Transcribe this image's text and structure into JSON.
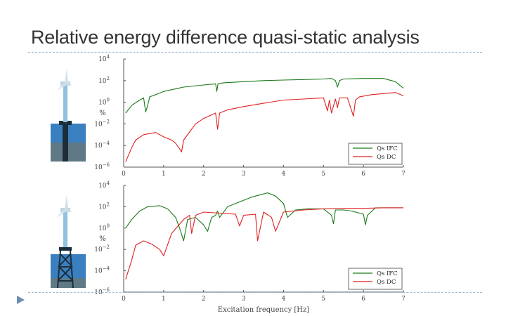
{
  "slide": {
    "title": "Relative energy difference quasi-static analysis"
  },
  "colors": {
    "ifc": "#1a7a1a",
    "dc": "#e02020",
    "axis": "#555555",
    "rule": "#a9bccd",
    "water": "#3a7fc0",
    "seabed": "#5f7a86",
    "tower": "#7fb8d8"
  },
  "icons": [
    "monopile-turbine-icon",
    "jacket-turbine-icon",
    "bullet-arrow-icon"
  ],
  "chart_data": [
    {
      "type": "line",
      "title": "",
      "xlabel": "",
      "ylabel": "%",
      "xlim": [
        0,
        7
      ],
      "ylim_log10": [
        -6,
        4
      ],
      "yscale": "log",
      "x_ticks": [
        "0",
        "1",
        "2",
        "3",
        "4",
        "5",
        "6",
        "7"
      ],
      "y_ticks": [
        {
          "base": "10",
          "exp": "4"
        },
        {
          "base": "10",
          "exp": "2"
        },
        {
          "base": "10",
          "exp": "0"
        },
        {
          "base": "10",
          "exp": "−2"
        },
        {
          "base": "10",
          "exp": "−4"
        },
        {
          "base": "10",
          "exp": "−6"
        }
      ],
      "legend_position": "bottom-right",
      "series": [
        {
          "name": "Qs IFC",
          "color": "#1a7a1a",
          "x": [
            0.05,
            0.2,
            0.4,
            0.5,
            0.55,
            0.6,
            0.65,
            0.8,
            1.0,
            1.5,
            2.0,
            2.3,
            2.33,
            2.36,
            2.5,
            3.0,
            3.5,
            4.0,
            4.5,
            5.0,
            5.2,
            5.3,
            5.35,
            5.4,
            5.5,
            6.0,
            6.5,
            6.8,
            7.0
          ],
          "log10_y": [
            -1.0,
            -0.3,
            0.2,
            0.4,
            -0.9,
            -0.3,
            0.5,
            0.7,
            1.0,
            1.4,
            1.6,
            1.7,
            1.0,
            1.7,
            1.8,
            1.9,
            2.0,
            2.05,
            2.1,
            2.15,
            2.2,
            2.0,
            1.4,
            2.0,
            2.15,
            2.2,
            2.2,
            1.9,
            1.3
          ]
        },
        {
          "name": "Qs DC",
          "color": "#e02020",
          "x": [
            0.05,
            0.2,
            0.3,
            0.5,
            0.8,
            1.0,
            1.2,
            1.3,
            1.4,
            1.45,
            1.5,
            1.8,
            2.0,
            2.3,
            2.35,
            2.4,
            2.6,
            3.0,
            3.5,
            4.0,
            4.5,
            5.0,
            5.1,
            5.15,
            5.2,
            5.3,
            5.35,
            5.4,
            5.6,
            5.75,
            5.8,
            5.9,
            6.2,
            6.5,
            6.8,
            7.0
          ],
          "log10_y": [
            -5.5,
            -4.2,
            -3.5,
            -3.0,
            -2.8,
            -3.2,
            -3.5,
            -3.8,
            -4.3,
            -4.6,
            -3.5,
            -2.0,
            -1.5,
            -1.0,
            -2.5,
            -1.0,
            -0.7,
            -0.4,
            -0.1,
            0.2,
            0.3,
            0.4,
            -0.8,
            0.2,
            -1.0,
            0.3,
            -0.5,
            0.4,
            0.4,
            -1.3,
            0.2,
            0.5,
            0.7,
            0.8,
            0.9,
            0.6
          ]
        }
      ]
    },
    {
      "type": "line",
      "title": "",
      "xlabel": "Excitation frequency [Hz]",
      "ylabel": "%",
      "xlim": [
        0,
        7
      ],
      "ylim_log10": [
        -6,
        4
      ],
      "yscale": "log",
      "x_ticks": [
        "0",
        "1",
        "2",
        "3",
        "4",
        "5",
        "6",
        "7"
      ],
      "y_ticks": [
        {
          "base": "10",
          "exp": "4"
        },
        {
          "base": "10",
          "exp": "2"
        },
        {
          "base": "10",
          "exp": "0"
        },
        {
          "base": "10",
          "exp": "−2"
        },
        {
          "base": "10",
          "exp": "−4"
        },
        {
          "base": "10",
          "exp": "−6"
        }
      ],
      "legend_position": "bottom-right",
      "series": [
        {
          "name": "Qs IFC",
          "color": "#1a7a1a",
          "x": [
            0.05,
            0.2,
            0.4,
            0.6,
            0.9,
            1.1,
            1.3,
            1.4,
            1.5,
            1.6,
            1.8,
            2.0,
            2.1,
            2.2,
            2.3,
            2.35,
            2.4,
            2.6,
            2.8,
            3.0,
            3.2,
            3.4,
            3.6,
            3.8,
            4.0,
            4.1,
            4.3,
            4.6,
            5.0,
            5.2,
            5.25,
            5.3,
            5.5,
            5.7,
            6.0,
            6.05,
            6.1,
            6.3,
            6.6,
            7.0
          ],
          "log10_y": [
            0.0,
            0.8,
            1.6,
            2.0,
            2.1,
            1.8,
            1.0,
            0.0,
            -1.2,
            0.8,
            1.0,
            0.3,
            -0.3,
            1.0,
            1.2,
            1.6,
            1.0,
            2.0,
            2.3,
            2.6,
            2.9,
            3.1,
            3.3,
            3.0,
            2.3,
            1.0,
            1.7,
            1.8,
            1.8,
            1.2,
            0.4,
            1.7,
            1.7,
            1.6,
            1.3,
            0.3,
            1.2,
            1.9,
            1.9,
            1.9
          ]
        },
        {
          "name": "Qs DC",
          "color": "#e02020",
          "x": [
            0.05,
            0.2,
            0.3,
            0.5,
            0.7,
            0.9,
            1.0,
            1.2,
            1.5,
            1.65,
            1.7,
            1.8,
            2.0,
            2.4,
            2.8,
            2.9,
            3.0,
            3.3,
            3.35,
            3.5,
            3.7,
            3.8,
            4.0,
            4.5,
            5.0,
            5.5,
            6.0,
            6.5,
            7.0
          ],
          "log10_y": [
            -4.8,
            -3.0,
            -1.6,
            -1.2,
            -1.5,
            -2.0,
            -2.6,
            -0.5,
            0.8,
            1.2,
            -0.5,
            1.2,
            1.5,
            1.4,
            1.3,
            0.2,
            1.2,
            1.3,
            -1.2,
            1.5,
            1.0,
            -0.3,
            1.5,
            1.7,
            1.8,
            1.85,
            1.85,
            1.9,
            1.9
          ]
        }
      ]
    }
  ]
}
